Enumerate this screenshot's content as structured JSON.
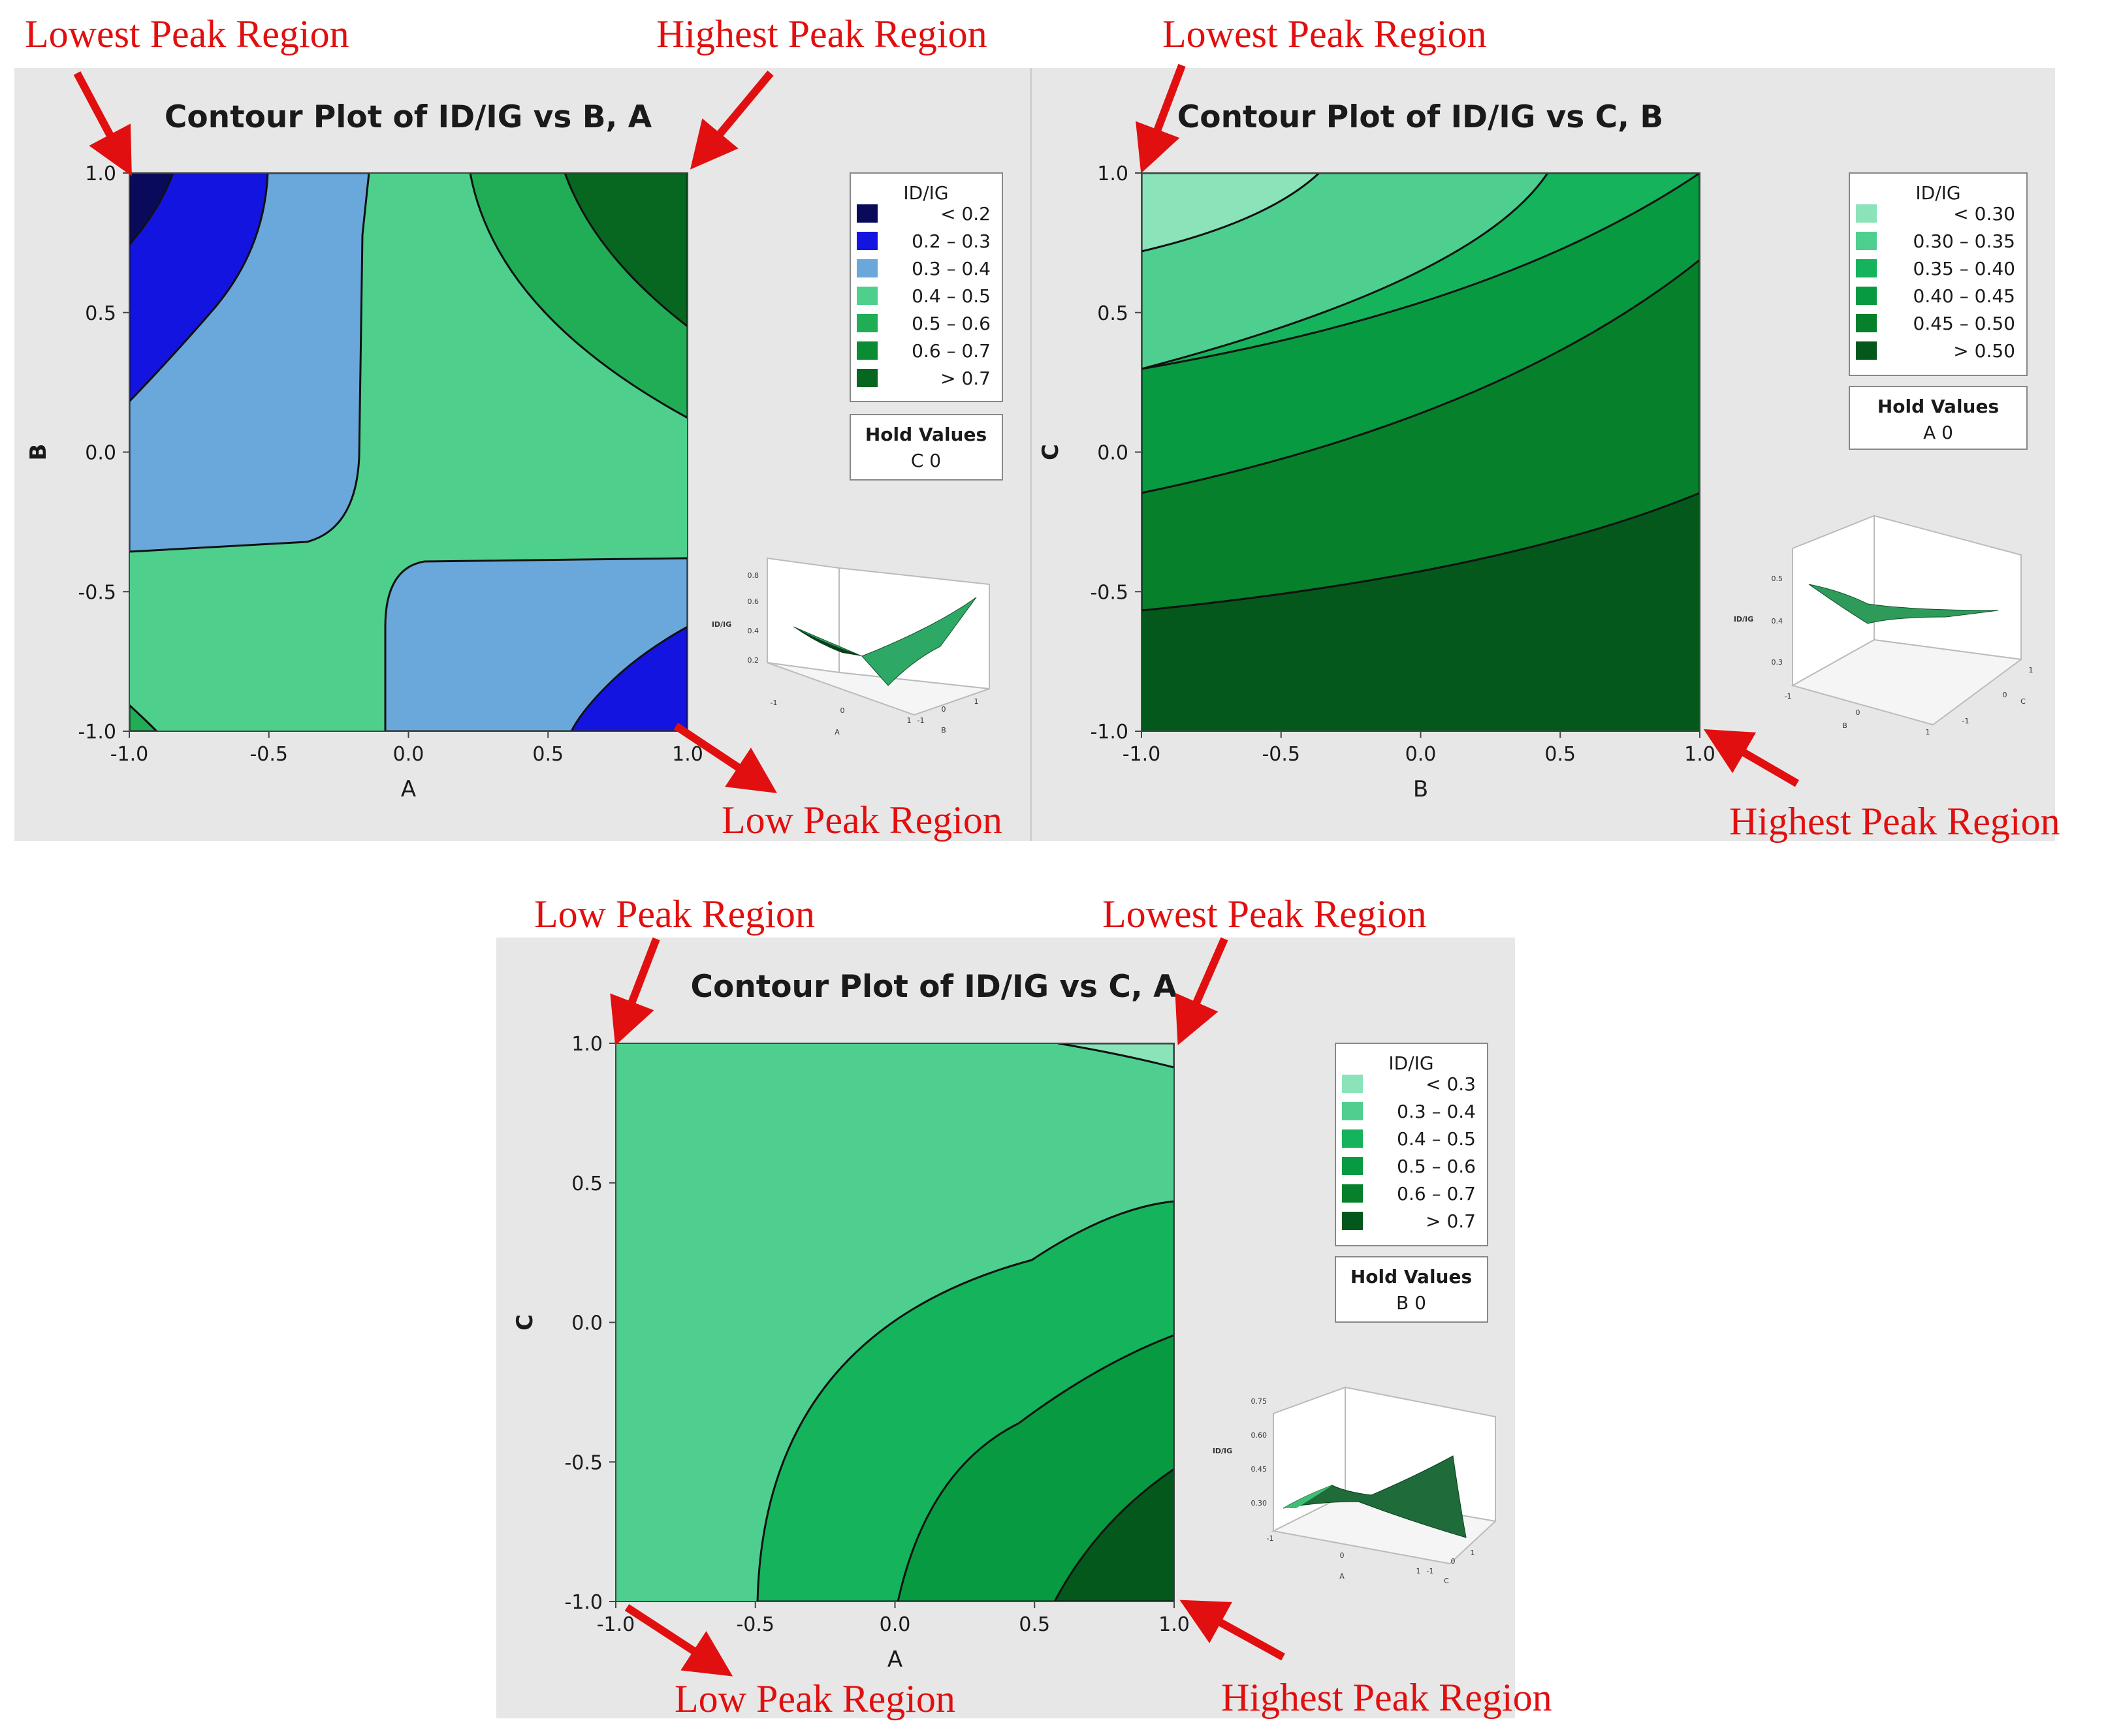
{
  "chart_data": [
    {
      "type": "contour",
      "title": "Contour Plot of ID/IG vs B, A",
      "xlabel": "A",
      "ylabel": "B",
      "xlim": [
        -1.0,
        1.0
      ],
      "ylim": [
        -1.0,
        1.0
      ],
      "xticks": [
        "-1.0",
        "-0.5",
        "0.0",
        "0.5",
        "1.0"
      ],
      "yticks": [
        "-1.0",
        "-0.5",
        "0.0",
        "0.5",
        "1.0"
      ],
      "z_label": "ID/IG",
      "legend": {
        "title": "ID/IG",
        "entries": [
          {
            "label": "<  0.2",
            "color": "#0a0a5a"
          },
          {
            "label": "0.2  –  0.3",
            "color": "#1414e0"
          },
          {
            "label": "0.3  –  0.4",
            "color": "#6aa8dc"
          },
          {
            "label": "0.4  –  0.5",
            "color": "#4ecf8c"
          },
          {
            "label": "0.5  –  0.6",
            "color": "#20ad55"
          },
          {
            "label": "0.6  –  0.7",
            "color": "#0a8c33"
          },
          {
            "label": ">  0.7",
            "color": "#07661f"
          }
        ]
      },
      "hold": {
        "title": "Hold Values",
        "value": "C  0"
      },
      "surface_thumbnail": {
        "z_label": "ID/IG",
        "z_ticks": [
          "0.8",
          "0.6",
          "0.4",
          "0.2"
        ],
        "x_label": "A",
        "y_label": "B",
        "x_ticks": [
          "-1",
          "0",
          "1"
        ],
        "y_ticks": [
          "-1",
          "0",
          "1"
        ]
      }
    },
    {
      "type": "contour",
      "title": "Contour Plot of ID/IG vs C, B",
      "xlabel": "B",
      "ylabel": "C",
      "xlim": [
        -1.0,
        1.0
      ],
      "ylim": [
        -1.0,
        1.0
      ],
      "xticks": [
        "-1.0",
        "-0.5",
        "0.0",
        "0.5",
        "1.0"
      ],
      "yticks": [
        "-1.0",
        "-0.5",
        "0.0",
        "0.5",
        "1.0"
      ],
      "z_label": "ID/IG",
      "legend": {
        "title": "ID/IG",
        "entries": [
          {
            "label": "<  0.30",
            "color": "#8be3ba"
          },
          {
            "label": "0.30  –  0.35",
            "color": "#4fcf8f"
          },
          {
            "label": "0.35  –  0.40",
            "color": "#15b35c"
          },
          {
            "label": "0.40  –  0.45",
            "color": "#079a40"
          },
          {
            "label": "0.45  –  0.50",
            "color": "#06802a"
          },
          {
            "label": ">  0.50",
            "color": "#04581b"
          }
        ]
      },
      "hold": {
        "title": "Hold Values",
        "value": "A  0"
      },
      "surface_thumbnail": {
        "z_label": "ID/IG",
        "z_ticks": [
          "0.5",
          "0.4",
          "0.3"
        ],
        "x_label": "B",
        "y_label": "C",
        "x_ticks": [
          "-1",
          "0",
          "1"
        ],
        "y_ticks": [
          "-1",
          "0",
          "1"
        ]
      }
    },
    {
      "type": "contour",
      "title": "Contour Plot of ID/IG vs C, A",
      "xlabel": "A",
      "ylabel": "C",
      "xlim": [
        -1.0,
        1.0
      ],
      "ylim": [
        -1.0,
        1.0
      ],
      "xticks": [
        "-1.0",
        "-0.5",
        "0.0",
        "0.5",
        "1.0"
      ],
      "yticks": [
        "-1.0",
        "-0.5",
        "0.0",
        "0.5",
        "1.0"
      ],
      "z_label": "ID/IG",
      "legend": {
        "title": "ID/IG",
        "entries": [
          {
            "label": "<  0.3",
            "color": "#8be3ba"
          },
          {
            "label": "0.3  –  0.4",
            "color": "#4fcf8f"
          },
          {
            "label": "0.4  –  0.5",
            "color": "#15b35c"
          },
          {
            "label": "0.5  –  0.6",
            "color": "#079a40"
          },
          {
            "label": "0.6  –  0.7",
            "color": "#06802a"
          },
          {
            "label": ">  0.7",
            "color": "#04581b"
          }
        ]
      },
      "hold": {
        "title": "Hold Values",
        "value": "B  0"
      },
      "surface_thumbnail": {
        "z_label": "ID/IG",
        "z_ticks": [
          "0.75",
          "0.60",
          "0.45",
          "0.30"
        ],
        "x_label": "A",
        "y_label": "C",
        "x_ticks": [
          "-1",
          "0",
          "1"
        ],
        "y_ticks": [
          "-1",
          "0",
          "1"
        ]
      }
    }
  ],
  "annotations": {
    "p1_top_left": "Lowest Peak Region",
    "p1_top_right": "Highest Peak Region",
    "p1_bottom_right": "Low Peak Region",
    "p2_top_left": "Lowest Peak Region",
    "p2_bottom_right": "Highest Peak Region",
    "p3_top_left": "Low Peak Region",
    "p3_top_right": "Lowest Peak Region",
    "p3_bottom_left": "Low Peak Region",
    "p3_bottom_right": "Highest Peak Region"
  },
  "colors": {
    "annotation": "#e10f0f",
    "panel_background": "#e7e7e7"
  }
}
